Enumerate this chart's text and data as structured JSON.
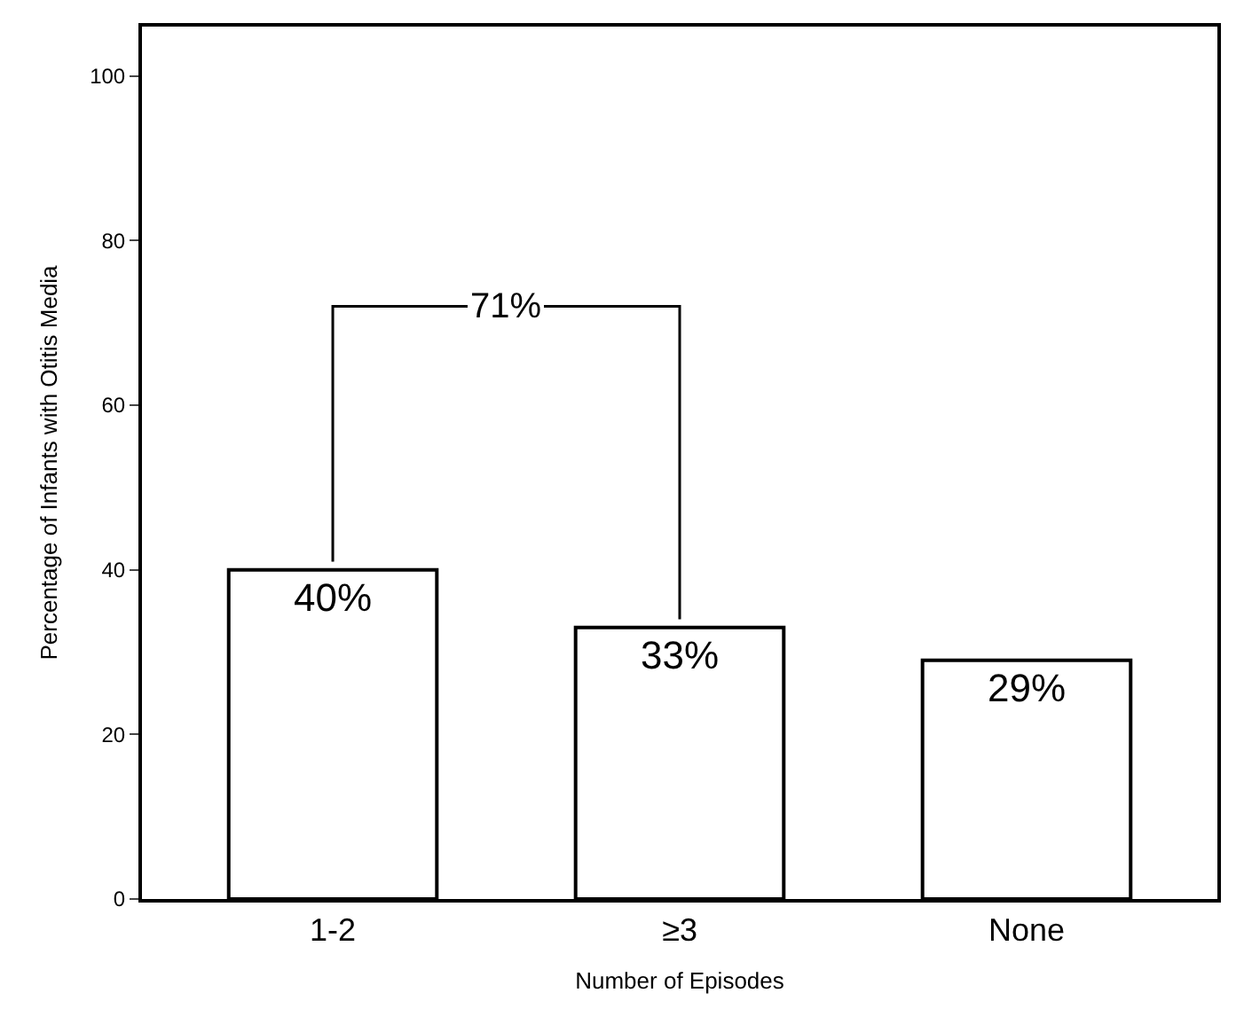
{
  "chart_data": {
    "type": "bar",
    "xlabel": "Number of Episodes",
    "ylabel": "Percentage of Infants with Otitis Media",
    "categories": [
      "1-2",
      "≥3",
      "None"
    ],
    "values": [
      40,
      33,
      29
    ],
    "value_labels": [
      "40%",
      "33%",
      "29%"
    ],
    "color": "#ffffff",
    "ylim": [
      0,
      106
    ],
    "yticks": [
      0,
      20,
      40,
      60,
      80,
      100
    ],
    "annotations": [
      {
        "text": "71%",
        "y": 72
      }
    ]
  }
}
